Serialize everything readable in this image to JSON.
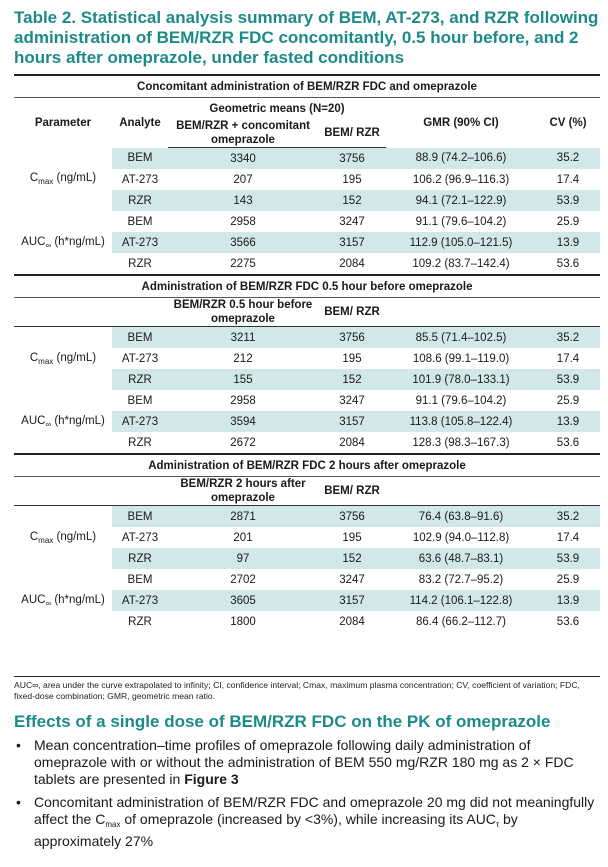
{
  "title": "Table 2. Statistical analysis summary of BEM, AT-273, and RZR following administration of BEM/RZR FDC concomitantly, 0.5 hour before, and 2 hours after omeprazole, under fasted conditions",
  "columns": {
    "parameter": "Parameter",
    "analyte": "Analyte",
    "geo": "Geometric means (N=20)",
    "ref": "BEM/ RZR",
    "gmr": "GMR (90% CI)",
    "cv": "CV (%)"
  },
  "param_labels": {
    "cmax": "C",
    "cmax_sub": "max",
    "cmax_unit": " (ng/mL)",
    "auc": "AUC",
    "auc_sub": "∞",
    "auc_unit": " (h*ng/mL)"
  },
  "sections": [
    {
      "title": "Concomitant administration of BEM/RZR FDC and omeprazole",
      "test_label": "BEM/RZR + concomitant omeprazole",
      "rows": [
        {
          "analyte": "BEM",
          "test": "3340",
          "ref": "3756",
          "gmr": "88.9 (74.2–106.6)",
          "cv": "35.2"
        },
        {
          "analyte": "AT-273",
          "test": "207",
          "ref": "195",
          "gmr": "106.2 (96.9–116.3)",
          "cv": "17.4"
        },
        {
          "analyte": "RZR",
          "test": "143",
          "ref": "152",
          "gmr": "94.1 (72.1–122.9)",
          "cv": "53.9"
        },
        {
          "analyte": "BEM",
          "test": "2958",
          "ref": "3247",
          "gmr": "91.1 (79.6–104.2)",
          "cv": "25.9"
        },
        {
          "analyte": "AT-273",
          "test": "3566",
          "ref": "3157",
          "gmr": "112.9 (105.0–121.5)",
          "cv": "13.9"
        },
        {
          "analyte": "RZR",
          "test": "2275",
          "ref": "2084",
          "gmr": "109.2 (83.7–142.4)",
          "cv": "53.6"
        }
      ]
    },
    {
      "title": "Administration of BEM/RZR FDC 0.5 hour before omeprazole",
      "test_label": "BEM/RZR 0.5 hour before omeprazole",
      "rows": [
        {
          "analyte": "BEM",
          "test": "3211",
          "ref": "3756",
          "gmr": "85.5 (71.4–102.5)",
          "cv": "35.2"
        },
        {
          "analyte": "AT-273",
          "test": "212",
          "ref": "195",
          "gmr": "108.6 (99.1–119.0)",
          "cv": "17.4"
        },
        {
          "analyte": "RZR",
          "test": "155",
          "ref": "152",
          "gmr": "101.9 (78.0–133.1)",
          "cv": "53.9"
        },
        {
          "analyte": "BEM",
          "test": "2958",
          "ref": "3247",
          "gmr": "91.1 (79.6–104.2)",
          "cv": "25.9"
        },
        {
          "analyte": "AT-273",
          "test": "3594",
          "ref": "3157",
          "gmr": "113.8 (105.8–122.4)",
          "cv": "13.9"
        },
        {
          "analyte": "RZR",
          "test": "2672",
          "ref": "2084",
          "gmr": "128.3 (98.3–167.3)",
          "cv": "53.6"
        }
      ]
    },
    {
      "title": "Administration of BEM/RZR FDC 2 hours after omeprazole",
      "test_label": "BEM/RZR 2 hours after omeprazole",
      "rows": [
        {
          "analyte": "BEM",
          "test": "2871",
          "ref": "3756",
          "gmr": "76.4 (63.8–91.6)",
          "cv": "35.2"
        },
        {
          "analyte": "AT-273",
          "test": "201",
          "ref": "195",
          "gmr": "102.9 (94.0–112.8)",
          "cv": "17.4"
        },
        {
          "analyte": "RZR",
          "test": "97",
          "ref": "152",
          "gmr": "63.6 (48.7–83.1)",
          "cv": "53.9"
        },
        {
          "analyte": "BEM",
          "test": "2702",
          "ref": "3247",
          "gmr": "83.2 (72.7–95.2)",
          "cv": "25.9"
        },
        {
          "analyte": "AT-273",
          "test": "3605",
          "ref": "3157",
          "gmr": "114.2 (106.1–122.8)",
          "cv": "13.9"
        },
        {
          "analyte": "RZR",
          "test": "1800",
          "ref": "2084",
          "gmr": "86.4 (66.2–112.7)",
          "cv": "53.6"
        }
      ]
    }
  ],
  "footnote": "AUC∞, area under the curve extrapolated to infinity; CI, confidence interval; Cmax, maximum plasma concentration; CV, coefficient of variation; FDC, fixed-dose combination; GMR, geometric mean ratio.",
  "heading": "Effects of a single dose of BEM/RZR FDC on the PK of omeprazole",
  "bullets": [
    {
      "pre": "Mean concentration–time profiles of omeprazole following daily administration of omeprazole with or without the administration of BEM 550 mg/RZR 180 mg as 2 × FDC tablets are presented in ",
      "bold": "Figure 3",
      "post": ""
    },
    {
      "pre": "Concomitant administration of BEM/RZR FDC and omeprazole 20 mg did not meaningfully affect the C",
      "sub1": "max",
      "mid": " of omeprazole (increased by <3%), while increasing its AUC",
      "sub2": "τ",
      "post": " by approximately 27%"
    }
  ]
}
